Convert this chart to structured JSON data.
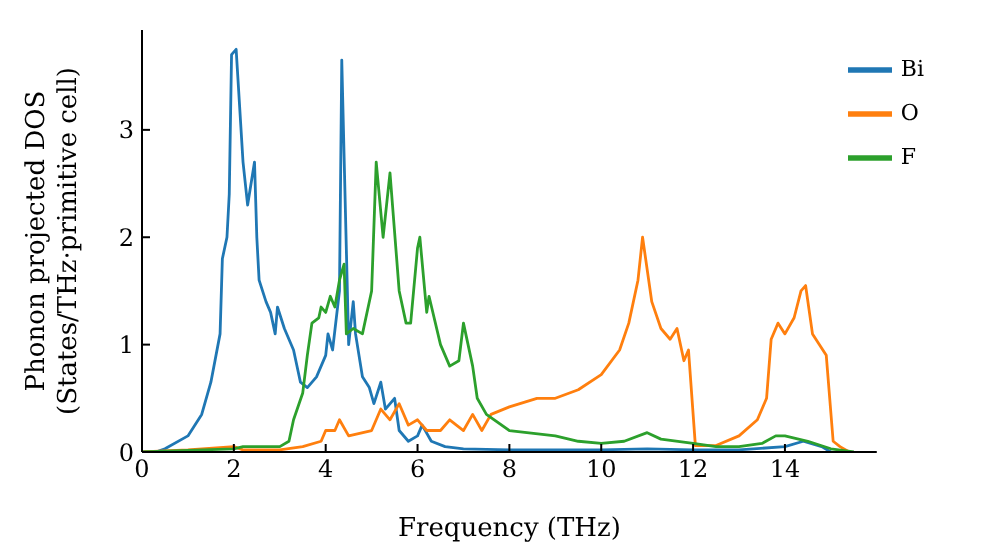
{
  "chart_data": {
    "type": "line",
    "xlabel": "Frequency (THz)",
    "ylabel": "Phonon projected DOS\n(States/THz·primitive cell)",
    "xlim": [
      0,
      16
    ],
    "ylim": [
      0,
      3.93
    ],
    "xticks": [
      0,
      2,
      4,
      6,
      8,
      10,
      12,
      14
    ],
    "yticks": [
      0,
      1,
      2,
      3
    ],
    "grid": false,
    "legend": "top right",
    "marker": "none",
    "line_style": "solid",
    "series": [
      {
        "name": "Bi",
        "color": "#1f77b4",
        "x": [
          0,
          0.3,
          0.5,
          1.0,
          1.3,
          1.5,
          1.7,
          1.75,
          1.85,
          1.9,
          1.95,
          2.05,
          2.2,
          2.3,
          2.45,
          2.5,
          2.55,
          2.7,
          2.8,
          2.9,
          2.95,
          3.1,
          3.3,
          3.45,
          3.6,
          3.8,
          4.0,
          4.05,
          4.15,
          4.3,
          4.35,
          4.5,
          4.6,
          4.65,
          4.8,
          4.95,
          5.05,
          5.2,
          5.3,
          5.5,
          5.6,
          5.8,
          6.0,
          6.1,
          6.3,
          6.6,
          7,
          8,
          10,
          11,
          12,
          13,
          14,
          14.4,
          14.8,
          15
        ],
        "values": [
          0,
          0,
          0.03,
          0.15,
          0.35,
          0.65,
          1.1,
          1.8,
          2.0,
          2.4,
          3.7,
          3.75,
          2.7,
          2.3,
          2.7,
          2.0,
          1.6,
          1.4,
          1.3,
          1.1,
          1.35,
          1.15,
          0.95,
          0.65,
          0.6,
          0.7,
          0.9,
          1.1,
          0.95,
          1.5,
          3.65,
          1.0,
          1.4,
          1.1,
          0.7,
          0.6,
          0.45,
          0.65,
          0.4,
          0.5,
          0.2,
          0.1,
          0.15,
          0.25,
          0.1,
          0.05,
          0.03,
          0.02,
          0.02,
          0.03,
          0.02,
          0.02,
          0.05,
          0.1,
          0.05,
          0
        ]
      },
      {
        "name": "O",
        "color": "#ff7f0e",
        "x": [
          0,
          1,
          2,
          2.2,
          3,
          3.5,
          3.9,
          4.0,
          4.2,
          4.3,
          4.5,
          5.0,
          5.2,
          5.4,
          5.6,
          5.8,
          6.0,
          6.2,
          6.5,
          6.7,
          7.0,
          7.2,
          7.4,
          7.6,
          8,
          8.6,
          9.0,
          9.5,
          10,
          10.4,
          10.6,
          10.8,
          10.9,
          11.1,
          11.3,
          11.5,
          11.65,
          11.8,
          11.9,
          12.05,
          12.5,
          13,
          13.4,
          13.6,
          13.7,
          13.85,
          14.0,
          14.2,
          14.35,
          14.45,
          14.6,
          14.9,
          15.05,
          15.2,
          15.4
        ],
        "values": [
          0,
          0.02,
          0.05,
          0.02,
          0.02,
          0.05,
          0.1,
          0.2,
          0.2,
          0.3,
          0.15,
          0.2,
          0.4,
          0.3,
          0.45,
          0.25,
          0.3,
          0.2,
          0.2,
          0.3,
          0.2,
          0.35,
          0.2,
          0.35,
          0.42,
          0.5,
          0.5,
          0.58,
          0.72,
          0.95,
          1.2,
          1.6,
          2.0,
          1.4,
          1.15,
          1.05,
          1.15,
          0.85,
          0.95,
          0.06,
          0.06,
          0.15,
          0.3,
          0.5,
          1.05,
          1.2,
          1.1,
          1.25,
          1.5,
          1.55,
          1.1,
          0.9,
          0.1,
          0.05,
          0
        ]
      },
      {
        "name": "F",
        "color": "#2ca02c",
        "x": [
          0,
          2,
          2.2,
          3,
          3.2,
          3.3,
          3.5,
          3.6,
          3.7,
          3.85,
          3.9,
          4.0,
          4.1,
          4.2,
          4.3,
          4.4,
          4.45,
          4.6,
          4.8,
          5.0,
          5.1,
          5.25,
          5.4,
          5.6,
          5.75,
          5.85,
          6.0,
          6.05,
          6.2,
          6.25,
          6.5,
          6.7,
          6.9,
          7.0,
          7.2,
          7.3,
          7.5,
          8,
          9,
          9.5,
          10,
          10.5,
          11,
          11.3,
          12,
          12.5,
          13,
          13.5,
          13.8,
          14,
          14.5,
          15,
          15.5
        ],
        "values": [
          0,
          0.03,
          0.05,
          0.05,
          0.1,
          0.3,
          0.55,
          0.9,
          1.2,
          1.25,
          1.35,
          1.3,
          1.45,
          1.35,
          1.6,
          1.75,
          1.1,
          1.15,
          1.1,
          1.5,
          2.7,
          2.0,
          2.6,
          1.5,
          1.2,
          1.2,
          1.9,
          2.0,
          1.3,
          1.45,
          1.0,
          0.8,
          0.85,
          1.2,
          0.8,
          0.5,
          0.35,
          0.2,
          0.15,
          0.1,
          0.08,
          0.1,
          0.18,
          0.12,
          0.08,
          0.05,
          0.05,
          0.08,
          0.15,
          0.15,
          0.1,
          0.03,
          0
        ]
      }
    ]
  }
}
